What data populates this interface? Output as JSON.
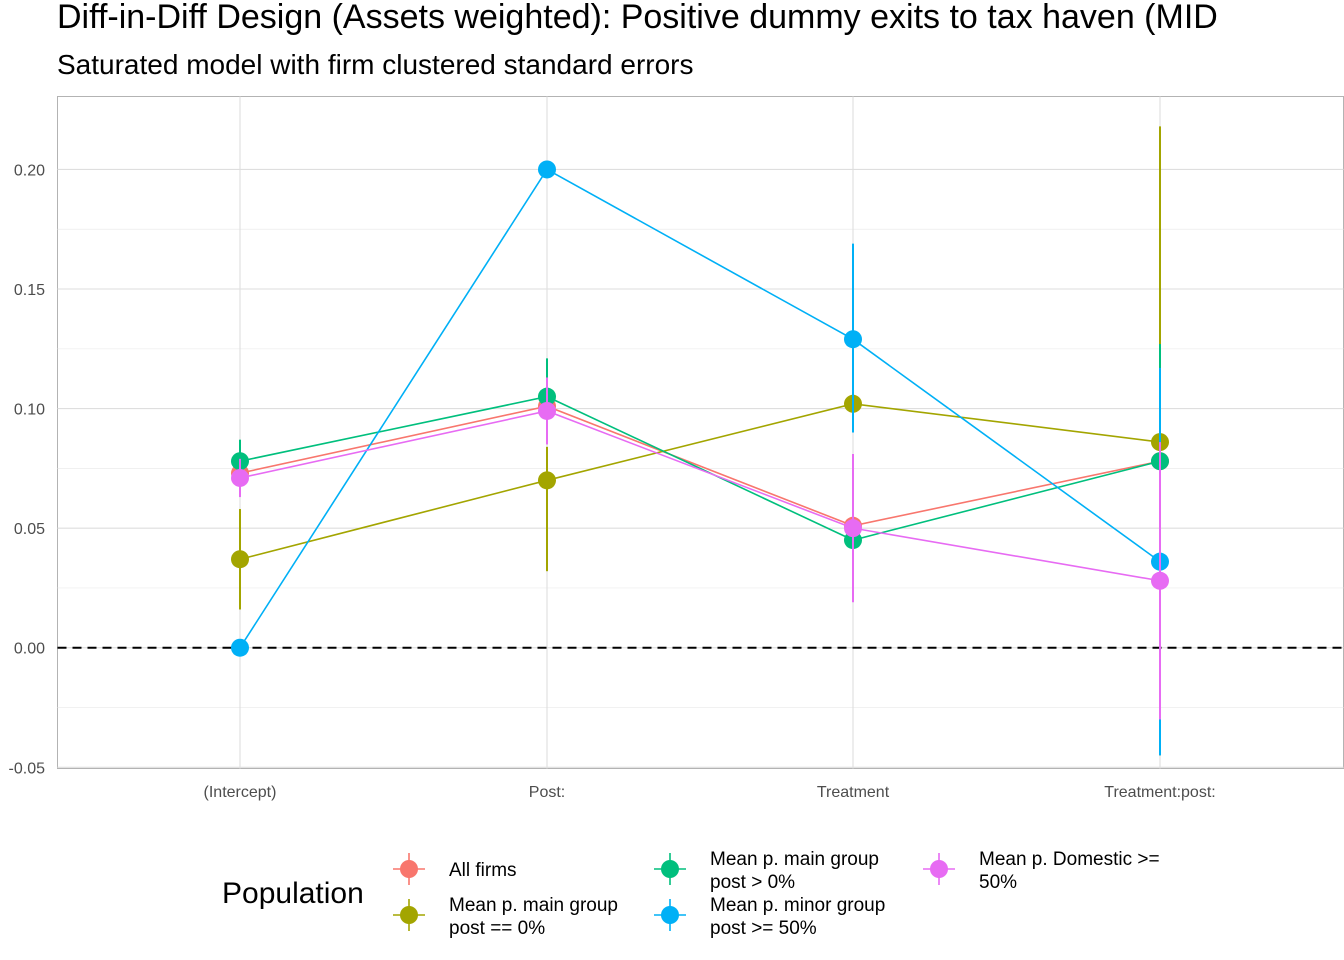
{
  "chart_data": {
    "type": "line",
    "title": "Diff-in-Diff Design (Assets weighted): Positive dummy exits to tax haven (MID",
    "subtitle": "Saturated model with firm clustered standard errors",
    "xlabel": "",
    "ylabel": "",
    "categories": [
      "(Intercept)",
      "Post:",
      "Treatment",
      "Treatment:post:"
    ],
    "ylim": [
      -0.0505,
      0.2305
    ],
    "y_ticks": [
      -0.05,
      0.0,
      0.05,
      0.1,
      0.15,
      0.2
    ],
    "y_tick_labels": [
      "-0.05",
      "0.00",
      "0.05",
      "0.10",
      "0.15",
      "0.20"
    ],
    "reference_line": {
      "y": 0.0,
      "style": "dashed"
    },
    "grid": true,
    "legend": {
      "title": "Population",
      "position": "bottom",
      "entries": [
        [
          "All firms"
        ],
        [
          "Mean p. main group",
          "post == 0%"
        ],
        [
          "Mean p. main group",
          "post > 0%"
        ],
        [
          "Mean p. minor group",
          "post >= 50%"
        ],
        [
          "Mean p. Domestic >=",
          "50%"
        ]
      ]
    },
    "series": [
      {
        "name": "All firms",
        "color": "#F8766D",
        "values": [
          0.073,
          0.101,
          0.051,
          0.078
        ],
        "lower": [
          0.064,
          0.091,
          0.038,
          0.068
        ],
        "upper": [
          0.082,
          0.111,
          0.064,
          0.088
        ]
      },
      {
        "name": "Mean p. main group post == 0%",
        "color": "#A3A500",
        "values": [
          0.037,
          0.07,
          0.102,
          0.086
        ],
        "lower": [
          0.016,
          0.032,
          0.09,
          -0.045
        ],
        "upper": [
          0.058,
          0.084,
          0.114,
          0.218
        ]
      },
      {
        "name": "Mean p. main group post > 0%",
        "color": "#00BF7D",
        "values": [
          0.078,
          0.105,
          0.045,
          0.078
        ],
        "lower": [
          0.068,
          0.089,
          0.031,
          0.03
        ],
        "upper": [
          0.087,
          0.121,
          0.059,
          0.127
        ]
      },
      {
        "name": "Mean p. minor group post >= 50%",
        "color": "#00B0F6",
        "values": [
          0.0,
          0.2,
          0.129,
          0.036
        ],
        "lower": [
          0.0,
          0.2,
          0.09,
          -0.045
        ],
        "upper": [
          0.0,
          0.2,
          0.169,
          0.117
        ]
      },
      {
        "name": "Mean p. Domestic >= 50%",
        "color": "#E76BF3",
        "values": [
          0.071,
          0.099,
          0.05,
          0.028
        ],
        "lower": [
          0.063,
          0.085,
          0.019,
          -0.03
        ],
        "upper": [
          0.079,
          0.113,
          0.081,
          0.086
        ]
      }
    ]
  }
}
